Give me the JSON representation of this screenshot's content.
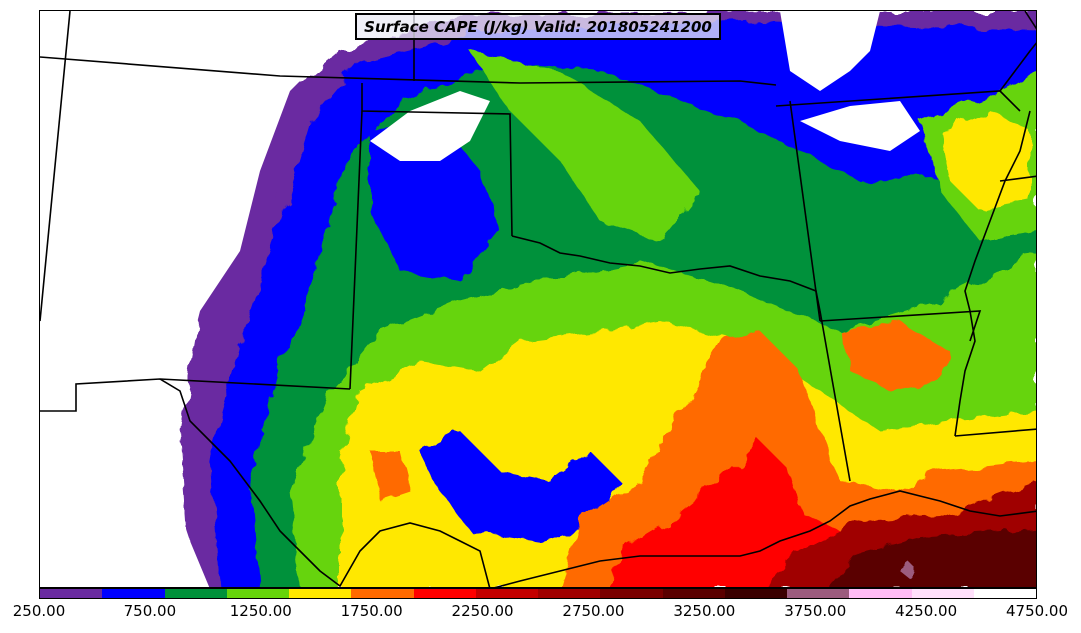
{
  "title": "Surface CAPE (J/kg) Valid: 201805241200",
  "colorbar": {
    "colors": [
      "#6a2ba1",
      "#0000ff",
      "#00913a",
      "#66d40a",
      "#ffe800",
      "#ff6a00",
      "#ff0000",
      "#c40000",
      "#a00000",
      "#7a0000",
      "#5a0000",
      "#3a0000",
      "#9c5c7e",
      "#ffbcf5",
      "#ffe0fb",
      "#ffffff"
    ],
    "labels": [
      "250.00",
      "750.00",
      "1250.00",
      "1750.00",
      "2250.00",
      "2750.00",
      "3250.00",
      "3750.00",
      "4250.00",
      "4750.00"
    ]
  },
  "map": {
    "variable": "Surface CAPE",
    "units": "J/kg",
    "valid_time": "201805241200"
  }
}
